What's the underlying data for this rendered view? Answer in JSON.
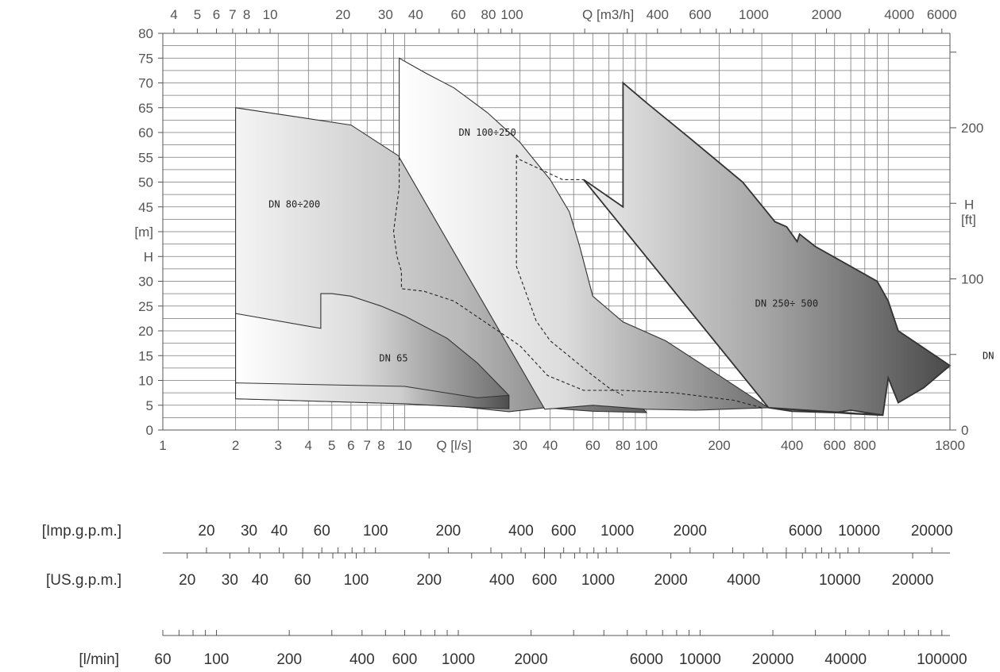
{
  "chart_data": {
    "type": "area",
    "title": "",
    "x_axis": {
      "label": "Q [l/s]",
      "scale": "log",
      "range": [
        1,
        1800
      ],
      "tick_labels": [
        "1",
        "2",
        "3",
        "4",
        "5",
        "6",
        "7",
        "8",
        "10",
        "Q [l/s]",
        "30",
        "40",
        "60",
        "80",
        "100",
        "200",
        "400",
        "600",
        "800",
        "1800"
      ],
      "tick_values": [
        1,
        2,
        3,
        4,
        5,
        6,
        7,
        8,
        10,
        null,
        30,
        40,
        60,
        80,
        100,
        200,
        400,
        600,
        800,
        1800
      ]
    },
    "top_axis": {
      "label": "Q [m3/h]",
      "tick_labels": [
        "4",
        "5",
        "6",
        "7",
        "8",
        "10",
        "20",
        "30",
        "40",
        "60",
        "80",
        "100",
        "Q [m3/h]",
        "400",
        "600",
        "1000",
        "2000",
        "4000",
        "6000"
      ],
      "tick_values_m3h": [
        4,
        5,
        6,
        7,
        8,
        10,
        20,
        30,
        40,
        60,
        80,
        100,
        null,
        400,
        600,
        1000,
        2000,
        4000,
        6000
      ]
    },
    "y_axis_left": {
      "label_line1": "H",
      "label_line2": "[m]",
      "range": [
        0,
        80
      ],
      "tick_labels": [
        "0",
        "5",
        "10",
        "15",
        "20",
        "25",
        "30",
        "H",
        "[m]",
        "45",
        "50",
        "55",
        "60",
        "65",
        "70",
        "75",
        "80"
      ]
    },
    "y_axis_right": {
      "label_line1": "H",
      "label_line2": "[ft]",
      "tick_labels": [
        "0",
        "100",
        "200"
      ],
      "tick_values_ft": [
        0,
        100,
        200
      ]
    },
    "regions": [
      {
        "name": "DN 65",
        "outline": [
          [
            2,
            9.5
          ],
          [
            2,
            23.5
          ],
          [
            4.5,
            20.5
          ],
          [
            4.5,
            27.5
          ],
          [
            5,
            27.5
          ],
          [
            6,
            27
          ],
          [
            8,
            25
          ],
          [
            10,
            23
          ],
          [
            15,
            18.5
          ],
          [
            20,
            13.5
          ],
          [
            27,
            7
          ]
        ],
        "base": [
          [
            2,
            6.3
          ],
          [
            10,
            5.3
          ],
          [
            20,
            4.5
          ],
          [
            27,
            4.3
          ]
        ]
      },
      {
        "name": "DN 80÷200",
        "outline": [
          [
            2,
            65
          ],
          [
            6,
            61.5
          ],
          [
            10,
            54.5
          ],
          [
            12,
            50
          ],
          [
            16,
            44
          ],
          [
            20,
            41.5
          ],
          [
            30,
            35.5
          ],
          [
            38,
            27
          ]
        ],
        "base": [
          [
            27,
            3.7
          ],
          [
            38,
            4.5
          ],
          [
            60,
            3.8
          ],
          [
            100,
            3.5
          ]
        ]
      },
      {
        "name": "DN 100÷250",
        "outline": [
          [
            9.5,
            55
          ],
          [
            9.5,
            75
          ],
          [
            12.2,
            72
          ],
          [
            16,
            69
          ],
          [
            22,
            64
          ],
          [
            30,
            58
          ],
          [
            40,
            50.5
          ],
          [
            48,
            44
          ],
          [
            53,
            37
          ],
          [
            60,
            27
          ],
          [
            80,
            21.8
          ],
          [
            120,
            18
          ],
          [
            200,
            11
          ],
          [
            280,
            6.3
          ],
          [
            320,
            4.5
          ]
        ],
        "base": [
          [
            38,
            4.2
          ],
          [
            60,
            5
          ],
          [
            100,
            4.2
          ],
          [
            160,
            4
          ]
        ]
      },
      {
        "name": "DN 250÷ 500",
        "outline": [
          [
            55,
            50.5
          ],
          [
            80,
            45
          ],
          [
            80,
            70
          ],
          [
            100,
            66
          ],
          [
            150,
            59
          ],
          [
            250,
            50
          ],
          [
            340,
            42
          ],
          [
            380,
            41
          ],
          [
            420,
            38
          ],
          [
            430,
            39.5
          ],
          [
            500,
            37
          ],
          [
            700,
            33
          ],
          [
            900,
            30
          ],
          [
            1000,
            26
          ],
          [
            1100,
            20
          ],
          [
            1800,
            13
          ],
          [
            1400,
            8.5
          ],
          [
            1100,
            5.5
          ],
          [
            1000,
            10.5
          ],
          [
            950,
            3
          ],
          [
            700,
            4
          ],
          [
            600,
            3.5
          ],
          [
            400,
            3.8
          ],
          [
            320,
            4.5
          ]
        ],
        "base": [
          [
            320,
            4.5
          ],
          [
            700,
            3.3
          ],
          [
            950,
            3
          ]
        ]
      }
    ],
    "dashed_boundaries": [
      [
        [
          9.5,
          55
        ],
        [
          9.5,
          49
        ],
        [
          9,
          40
        ],
        [
          9.3,
          35
        ],
        [
          9.7,
          32
        ],
        [
          9.7,
          28.5
        ],
        [
          12,
          28
        ],
        [
          16,
          26
        ],
        [
          30,
          17
        ],
        [
          39,
          11
        ],
        [
          55,
          8
        ],
        [
          80,
          8
        ],
        [
          130,
          7.5
        ],
        [
          230,
          6
        ],
        [
          300,
          4.5
        ]
      ],
      [
        [
          29,
          55.5
        ],
        [
          30,
          54.5
        ],
        [
          45,
          50.5
        ],
        [
          55,
          50.5
        ]
      ],
      [
        [
          29,
          55.5
        ],
        [
          29,
          33
        ],
        [
          35,
          22
        ],
        [
          40,
          18
        ],
        [
          60,
          11
        ],
        [
          70,
          8.5
        ],
        [
          80,
          7
        ]
      ]
    ],
    "lower_scales": [
      {
        "label": "[Imp.g.p.m.]",
        "tick_labels": [
          "20",
          "30",
          "40",
          "60",
          "100",
          "200",
          "400",
          "600",
          "1000",
          "2000",
          "6000",
          "10000",
          "20000"
        ],
        "tick_values": [
          20,
          30,
          40,
          60,
          100,
          200,
          400,
          600,
          1000,
          2000,
          6000,
          10000,
          20000
        ]
      },
      {
        "label": "[US.g.p.m.]",
        "tick_labels": [
          "20",
          "30",
          "40",
          "60",
          "100",
          "200",
          "400",
          "600",
          "1000",
          "2000",
          "4000",
          "10000",
          "20000"
        ],
        "tick_values": [
          20,
          30,
          40,
          60,
          100,
          200,
          400,
          600,
          1000,
          2000,
          4000,
          10000,
          20000
        ]
      },
      {
        "label": "[l/min]",
        "tick_labels": [
          "60",
          "100",
          "200",
          "400",
          "600",
          "1000",
          "2000",
          "6000",
          "10000",
          "20000",
          "40000",
          "100000"
        ],
        "tick_values": [
          60,
          100,
          200,
          400,
          600,
          1000,
          2000,
          6000,
          10000,
          20000,
          40000,
          100000
        ]
      }
    ],
    "right_edge_label": "DN",
    "grid": true
  }
}
